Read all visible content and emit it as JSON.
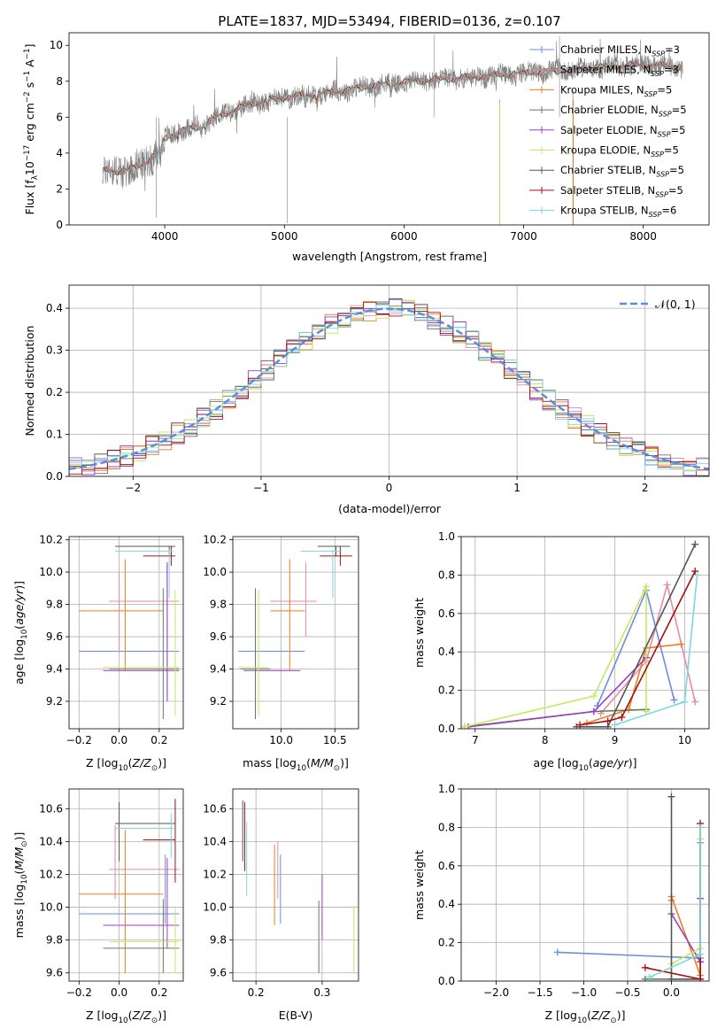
{
  "figure_title": "PLATE=1837, MJD=53494, FIBERID=0136, z=0.107",
  "colors": [
    "#6a8fe0",
    "#e88aa8",
    "#ee7d1e",
    "#5e7d5e",
    "#9b3fc0",
    "#c8e85e",
    "#555555",
    "#a81010",
    "#7ad8e0"
  ],
  "legend_main": [
    {
      "pre": "Chabrier MILES, N",
      "sub": "SSP",
      "post": "=3"
    },
    {
      "pre": "Salpeter MILES, N",
      "sub": "SSP",
      "post": "=3"
    },
    {
      "pre": "Kroupa MILES, N",
      "sub": "SSP",
      "post": "=5"
    },
    {
      "pre": "Chabrier ELODIE, N",
      "sub": "SSP",
      "post": "=5"
    },
    {
      "pre": "Salpeter ELODIE, N",
      "sub": "SSP",
      "post": "=5"
    },
    {
      "pre": "Kroupa ELODIE, N",
      "sub": "SSP",
      "post": "=5"
    },
    {
      "pre": "Chabrier STELIB, N",
      "sub": "SSP",
      "post": "=5"
    },
    {
      "pre": "Salpeter STELIB, N",
      "sub": "SSP",
      "post": "=5"
    },
    {
      "pre": "Kroupa STELIB, N",
      "sub": "SSP",
      "post": "=6"
    }
  ],
  "chart_data": [
    {
      "id": "spectrum",
      "type": "line",
      "xlabel": "wavelength [Angstrom, rest frame]",
      "ylabel": "Flux [f_λ10^-17 erg cm^-2 s^-1 A^-1]",
      "xlim": [
        3200,
        8550
      ],
      "ylim": [
        0,
        10.7
      ],
      "xticks": [
        4000,
        5000,
        6000,
        7000,
        8000
      ],
      "yticks": [
        0,
        2,
        4,
        6,
        8,
        10
      ],
      "grid": false,
      "legend": "top-right",
      "data_color": "#808080",
      "continuum_x": [
        3480,
        3600,
        3700,
        3800,
        3900,
        3950,
        4000,
        4100,
        4300,
        4500,
        4700,
        4900,
        5100,
        5300,
        5500,
        5700,
        5900,
        6100,
        6300,
        6500,
        6700,
        6900,
        7100,
        7300,
        7500,
        7700,
        7900,
        8100,
        8300
      ],
      "continuum_y": [
        3.0,
        3.0,
        3.1,
        3.3,
        3.8,
        4.2,
        4.8,
        5.2,
        5.5,
        6.2,
        6.7,
        7.0,
        7.2,
        7.3,
        7.5,
        7.7,
        7.9,
        8.0,
        8.1,
        8.2,
        8.3,
        8.4,
        8.5,
        8.6,
        8.7,
        8.8,
        8.9,
        8.9,
        8.8
      ]
    },
    {
      "id": "residuals",
      "type": "histogram",
      "xlabel": "(data-model)/error",
      "ylabel": "Normed distribution",
      "xlim": [
        -2.5,
        2.5
      ],
      "ylim": [
        0,
        0.455
      ],
      "xticks": [
        -2,
        -1,
        0,
        1,
        2
      ],
      "yticks": [
        0.0,
        0.1,
        0.2,
        0.3,
        0.4
      ],
      "grid": true,
      "legend": "top-right",
      "legend_label": "𝒩(0, 1)",
      "gauss_color": "#5b8ee0",
      "bin_width": 0.1
    },
    {
      "id": "age-vs-Z",
      "type": "errorbar",
      "xlabel": "Z [log10(Z/Z⊙)]",
      "ylabel": "age [log10(age/yr)]",
      "xlim": [
        -0.25,
        0.32
      ],
      "ylim": [
        9.03,
        10.22
      ],
      "xticks": [
        -0.2,
        0.0,
        0.2
      ],
      "yticks": [
        9.2,
        9.4,
        9.6,
        9.8,
        10.0,
        10.2
      ],
      "grid": true,
      "points": [
        {
          "x": 0.03,
          "xlo": -0.2,
          "xhi": 0.3,
          "y": 9.51,
          "ylo": 9.51,
          "yhi": 9.51,
          "vx": 0.24,
          "vlo": 9.2,
          "vhi": 10.06
        },
        {
          "x": 0.0,
          "xlo": -0.05,
          "xhi": 0.3,
          "y": 9.82,
          "ylo": 9.5,
          "yhi": 10.08,
          "vx": 0.0,
          "vlo": 9.5,
          "vhi": 10.0
        },
        {
          "x": 0.02,
          "xlo": -0.2,
          "xhi": 0.22,
          "y": 9.76,
          "ylo": 9.39,
          "yhi": 10.08,
          "vx": 0.03,
          "vlo": 9.39,
          "vhi": 10.08
        },
        {
          "x": 0.22,
          "xlo": -0.05,
          "xhi": 0.3,
          "y": 9.4,
          "ylo": 9.09,
          "yhi": 9.9,
          "vx": 0.22,
          "vlo": 9.09,
          "vhi": 9.9
        },
        {
          "x": 0.1,
          "xlo": -0.08,
          "xhi": 0.3,
          "y": 9.39,
          "ylo": 9.39,
          "yhi": 9.39,
          "vx": 0.24,
          "vlo": 9.2,
          "vhi": 10.06
        },
        {
          "x": 0.12,
          "xlo": -0.08,
          "xhi": 0.3,
          "y": 9.41,
          "ylo": 9.11,
          "yhi": 9.89,
          "vx": 0.28,
          "vlo": 9.11,
          "vhi": 9.89
        },
        {
          "x": 0.15,
          "xlo": -0.02,
          "xhi": 0.28,
          "y": 10.16,
          "ylo": 10.1,
          "yhi": 10.16,
          "vx": 0.25,
          "vlo": 10.1,
          "vhi": 10.16
        },
        {
          "x": 0.22,
          "xlo": 0.12,
          "xhi": 0.28,
          "y": 10.1,
          "ylo": 10.04,
          "yhi": 10.16,
          "vx": 0.26,
          "vlo": 10.04,
          "vhi": 10.16
        },
        {
          "x": 0.12,
          "xlo": -0.02,
          "xhi": 0.27,
          "y": 10.13,
          "ylo": 9.84,
          "yhi": 10.14,
          "vx": 0.25,
          "vlo": 9.84,
          "vhi": 10.14
        }
      ]
    },
    {
      "id": "age-vs-mass",
      "type": "errorbar",
      "xlabel": "mass [log10(M/M⊙)]",
      "ylabel": "",
      "xlim": [
        9.55,
        10.72
      ],
      "ylim": [
        9.03,
        10.22
      ],
      "xticks": [
        10.0,
        10.5
      ],
      "yticks": [
        9.2,
        9.4,
        9.6,
        9.8,
        10.0,
        10.2
      ],
      "grid": true,
      "points": [
        {
          "x": 9.96,
          "xlo": 9.6,
          "xhi": 10.22,
          "y": 9.51,
          "ylo": 9.51,
          "yhi": 9.51,
          "vx": 9.96,
          "vlo": 9.51,
          "vhi": 9.51
        },
        {
          "x": 10.23,
          "xlo": 9.9,
          "xhi": 10.33,
          "y": 9.82,
          "ylo": 9.6,
          "yhi": 10.06,
          "vx": 10.23,
          "vlo": 9.6,
          "vhi": 10.06
        },
        {
          "x": 10.08,
          "xlo": 9.9,
          "xhi": 10.22,
          "y": 9.76,
          "ylo": 9.39,
          "yhi": 10.08,
          "vx": 10.08,
          "vlo": 9.39,
          "vhi": 10.08
        },
        {
          "x": 9.76,
          "xlo": 9.62,
          "xhi": 9.9,
          "y": 9.4,
          "ylo": 9.09,
          "yhi": 9.9,
          "vx": 9.76,
          "vlo": 9.09,
          "vhi": 9.9
        },
        {
          "x": 9.89,
          "xlo": 9.65,
          "xhi": 10.18,
          "y": 9.39,
          "ylo": 9.39,
          "yhi": 9.39,
          "vx": 9.89,
          "vlo": 9.39,
          "vhi": 9.39
        },
        {
          "x": 9.79,
          "xlo": 9.6,
          "xhi": 9.88,
          "y": 9.41,
          "ylo": 9.11,
          "yhi": 9.89,
          "vx": 9.79,
          "vlo": 9.11,
          "vhi": 9.89
        },
        {
          "x": 10.51,
          "xlo": 10.34,
          "xhi": 10.64,
          "y": 10.16,
          "ylo": 10.1,
          "yhi": 10.16,
          "vx": 10.51,
          "vlo": 10.1,
          "vhi": 10.16
        },
        {
          "x": 10.41,
          "xlo": 10.36,
          "xhi": 10.66,
          "y": 10.1,
          "ylo": 10.04,
          "yhi": 10.16,
          "vx": 10.55,
          "vlo": 10.04,
          "vhi": 10.16
        },
        {
          "x": 10.48,
          "xlo": 10.18,
          "xhi": 10.55,
          "y": 10.13,
          "ylo": 9.84,
          "yhi": 10.14,
          "vx": 10.48,
          "vlo": 9.84,
          "vhi": 10.14
        }
      ]
    },
    {
      "id": "mass-weight-vs-age",
      "type": "line",
      "xlabel": "age [log10(age/yr)]",
      "ylabel": "mass weight",
      "xlim": [
        6.8,
        10.35
      ],
      "ylim": [
        0,
        1.0
      ],
      "xticks": [
        7,
        8,
        9,
        10
      ],
      "yticks": [
        0.0,
        0.2,
        0.4,
        0.6,
        0.8,
        1.0
      ],
      "grid": true,
      "series": [
        {
          "x": [
            8.75,
            9.45,
            9.85
          ],
          "y": [
            0.12,
            0.72,
            0.15
          ]
        },
        {
          "x": [
            8.8,
            9.45,
            9.75,
            10.15
          ],
          "y": [
            0.08,
            0.35,
            0.75,
            0.14
          ]
        },
        {
          "x": [
            8.6,
            9.2,
            9.45,
            9.95
          ],
          "y": [
            0.03,
            0.1,
            0.42,
            0.44
          ]
        },
        {
          "x": [
            6.85,
            8.7,
            9.45
          ],
          "y": [
            0.01,
            0.09,
            0.1
          ]
        },
        {
          "x": [
            6.9,
            8.7,
            9.45
          ],
          "y": [
            0.01,
            0.09,
            0.37
          ]
        },
        {
          "x": [
            6.85,
            8.7,
            9.45,
            9.45
          ],
          "y": [
            0.01,
            0.17,
            0.74,
            0.09
          ]
        },
        {
          "x": [
            8.45,
            8.9,
            10.15
          ],
          "y": [
            0.01,
            0.01,
            0.96
          ]
        },
        {
          "x": [
            8.5,
            8.9,
            9.1,
            10.15
          ],
          "y": [
            0.02,
            0.04,
            0.06,
            0.82
          ]
        },
        {
          "x": [
            9.0,
            10.0,
            10.18
          ],
          "y": [
            0.02,
            0.14,
            0.8
          ]
        }
      ]
    },
    {
      "id": "mass-vs-Z",
      "type": "errorbar",
      "xlabel": "Z [log10(Z/Z⊙)]",
      "ylabel": "mass [log10(M/M⊙)]",
      "xlim": [
        -0.25,
        0.32
      ],
      "ylim": [
        9.55,
        10.72
      ],
      "xticks": [
        -0.2,
        0.0,
        0.2
      ],
      "yticks": [
        9.6,
        9.8,
        10.0,
        10.2,
        10.4,
        10.6
      ],
      "grid": true,
      "points": [
        {
          "x": 0.03,
          "xlo": -0.2,
          "xhi": 0.3,
          "y": 9.96,
          "vx": 0.23,
          "vlo": 9.9,
          "vhi": 10.32
        },
        {
          "x": 0.05,
          "xlo": -0.05,
          "xhi": 0.3,
          "y": 10.23,
          "vx": -0.02,
          "vlo": 10.05,
          "vhi": 10.5
        },
        {
          "x": 0.02,
          "xlo": -0.2,
          "xhi": 0.22,
          "y": 10.08,
          "vx": 0.03,
          "vlo": 9.6,
          "vhi": 10.47
        },
        {
          "x": 0.1,
          "xlo": -0.08,
          "xhi": 0.3,
          "y": 9.75,
          "vx": 0.22,
          "vlo": 9.6,
          "vhi": 10.05
        },
        {
          "x": 0.1,
          "xlo": -0.08,
          "xhi": 0.3,
          "y": 9.89,
          "vx": 0.24,
          "vlo": 9.75,
          "vhi": 10.3
        },
        {
          "x": 0.1,
          "xlo": -0.05,
          "xhi": 0.3,
          "y": 9.79,
          "vx": 0.28,
          "vlo": 9.6,
          "vhi": 10.0
        },
        {
          "x": 0.15,
          "xlo": -0.02,
          "xhi": 0.28,
          "y": 10.51,
          "vx": 0.0,
          "vlo": 10.28,
          "vhi": 10.64
        },
        {
          "x": 0.2,
          "xlo": 0.12,
          "xhi": 0.28,
          "y": 10.41,
          "vx": 0.28,
          "vlo": 10.15,
          "vhi": 10.66
        },
        {
          "x": 0.12,
          "xlo": -0.02,
          "xhi": 0.27,
          "y": 10.48,
          "vx": 0.26,
          "vlo": 10.3,
          "vhi": 10.57
        }
      ]
    },
    {
      "id": "mass-vs-EBV",
      "type": "errorbar",
      "xlabel": "E(B-V)",
      "ylabel": "",
      "xlim": [
        0.165,
        0.355
      ],
      "ylim": [
        9.55,
        10.72
      ],
      "xticks": [
        0.2,
        0.3
      ],
      "yticks": [
        9.6,
        9.8,
        10.0,
        10.2,
        10.4,
        10.6
      ],
      "grid": true,
      "points": [
        {
          "x": 0.237,
          "vlo": 9.9,
          "vhi": 10.32
        },
        {
          "x": 0.233,
          "vlo": 10.05,
          "vhi": 10.4
        },
        {
          "x": 0.228,
          "vlo": 9.89,
          "vhi": 10.38
        },
        {
          "x": 0.295,
          "vlo": 9.6,
          "vhi": 10.04
        },
        {
          "x": 0.3,
          "vlo": 9.8,
          "vhi": 10.2
        },
        {
          "x": 0.348,
          "vlo": 9.6,
          "vhi": 10.01
        },
        {
          "x": 0.18,
          "vlo": 10.28,
          "vhi": 10.65
        },
        {
          "x": 0.183,
          "vlo": 10.22,
          "vhi": 10.64
        },
        {
          "x": 0.186,
          "vlo": 10.07,
          "vhi": 10.52
        }
      ]
    },
    {
      "id": "mass-weight-vs-Z",
      "type": "line",
      "xlabel": "Z [log10(Z/Z⊙)]",
      "ylabel": "mass weight",
      "xlim": [
        -2.4,
        0.43
      ],
      "ylim": [
        0,
        1.0
      ],
      "xticks": [
        -2.0,
        -1.5,
        -1.0,
        -0.5,
        0.0
      ],
      "yticks": [
        0.0,
        0.2,
        0.4,
        0.6,
        0.8,
        1.0
      ],
      "grid": true,
      "series": [
        {
          "x": [
            -1.3,
            0.33,
            0.33
          ],
          "y": [
            0.15,
            0.12,
            0.72
          ]
        },
        {
          "x": -0.0,
          "y": 0,
          "_note_": ""
        },
        {
          "x": [
            0.0,
            0.0,
            0.33
          ],
          "y": [
            0.42,
            0.44,
            0.03
          ]
        },
        {
          "x": [
            -0.3,
            0.33,
            0.33
          ],
          "y": [
            0.01,
            0.01,
            0.1
          ]
        },
        {
          "x": [
            0.0,
            0.33,
            0.33
          ],
          "y": [
            0.35,
            0.1,
            0.43
          ]
        },
        {
          "x": [
            0.0,
            0.33,
            0.33
          ],
          "y": [
            0.09,
            0.17,
            0.74
          ]
        },
        {
          "x": [
            0.0,
            0.0,
            0.33
          ],
          "y": [
            0.96,
            0.01,
            0.01
          ]
        },
        {
          "x": [
            -0.3,
            0.33,
            0.33
          ],
          "y": [
            0.07,
            0.01,
            0.82
          ]
        },
        {
          "x": [
            -0.25,
            0.33,
            0.33
          ],
          "y": [
            0.02,
            0.14,
            0.8
          ]
        }
      ]
    }
  ]
}
